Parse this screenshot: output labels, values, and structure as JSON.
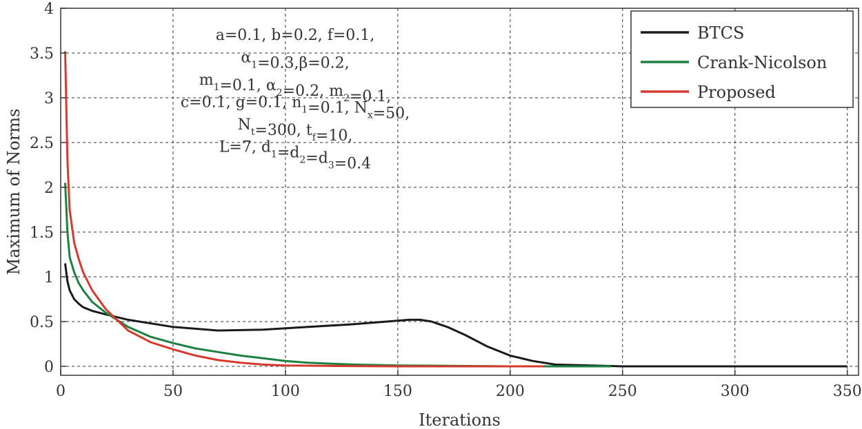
{
  "chart_data": {
    "type": "line",
    "xlabel": "Iterations",
    "ylabel": "Maximum of Norms",
    "xlim": [
      0,
      355
    ],
    "ylim": [
      -0.1,
      4
    ],
    "x_ticks": [
      0,
      50,
      100,
      150,
      200,
      250,
      300,
      350
    ],
    "y_ticks": [
      0,
      0.5,
      1,
      1.5,
      2,
      2.5,
      3,
      3.5,
      4
    ],
    "grid": true,
    "legend_position": "top-right",
    "series": [
      {
        "name": "BTCS",
        "color": "#1a1a1a",
        "x": [
          2,
          3,
          4,
          6,
          8,
          10,
          14,
          20,
          30,
          50,
          70,
          90,
          110,
          130,
          145,
          155,
          160,
          165,
          172,
          180,
          190,
          200,
          210,
          220,
          250,
          300,
          350
        ],
        "y": [
          1.15,
          0.95,
          0.85,
          0.75,
          0.7,
          0.66,
          0.62,
          0.58,
          0.52,
          0.44,
          0.4,
          0.41,
          0.44,
          0.47,
          0.5,
          0.52,
          0.52,
          0.5,
          0.44,
          0.35,
          0.22,
          0.12,
          0.06,
          0.02,
          0,
          0,
          0
        ]
      },
      {
        "name": "Crank-Nicolson",
        "color": "#1e8040",
        "x": [
          2,
          3,
          4,
          6,
          8,
          10,
          14,
          20,
          30,
          40,
          50,
          60,
          70,
          80,
          90,
          100,
          110,
          120,
          130,
          150,
          200,
          245
        ],
        "y": [
          2.05,
          1.5,
          1.22,
          1.05,
          0.93,
          0.85,
          0.72,
          0.6,
          0.44,
          0.33,
          0.26,
          0.2,
          0.16,
          0.12,
          0.09,
          0.06,
          0.04,
          0.03,
          0.02,
          0.01,
          0.0,
          0.0
        ]
      },
      {
        "name": "Proposed",
        "color": "#d63a2e",
        "x": [
          2,
          3,
          4,
          6,
          8,
          10,
          14,
          20,
          30,
          40,
          50,
          60,
          70,
          80,
          90,
          100,
          120,
          150,
          215
        ],
        "y": [
          3.52,
          2.3,
          1.75,
          1.38,
          1.2,
          1.05,
          0.85,
          0.64,
          0.4,
          0.27,
          0.19,
          0.12,
          0.07,
          0.04,
          0.02,
          0.01,
          0.005,
          0.0,
          0.0
        ]
      }
    ],
    "annotation_lines": [
      [
        {
          "t": "a=0.1, b=0.2, f=0.1,"
        }
      ],
      [
        {
          "t": "α"
        },
        {
          "t": "1",
          "sub": true
        },
        {
          "t": "=0.3,β=0.2,"
        }
      ],
      [
        {
          "t": "m"
        },
        {
          "t": "1",
          "sub": true
        },
        {
          "t": "=0.1, α"
        },
        {
          "t": "2",
          "sub": true
        },
        {
          "t": "=0.2, m"
        },
        {
          "t": "2",
          "sub": true
        },
        {
          "t": "=0.1,"
        }
      ],
      [
        {
          "t": "c=0.1, g=0.1, n"
        },
        {
          "t": "1",
          "sub": true
        },
        {
          "t": "=0.1, N"
        },
        {
          "t": "x",
          "sub": true
        },
        {
          "t": "=50,"
        }
      ],
      [
        {
          "t": "N"
        },
        {
          "t": "t",
          "sub": true
        },
        {
          "t": "=300, t"
        },
        {
          "t": "f",
          "sub": true
        },
        {
          "t": "=10,"
        }
      ],
      [
        {
          "t": "L=7, d"
        },
        {
          "t": "1",
          "sub": true
        },
        {
          "t": "=d"
        },
        {
          "t": "2",
          "sub": true
        },
        {
          "t": "=d"
        },
        {
          "t": "3",
          "sub": true
        },
        {
          "t": "=0.4"
        }
      ]
    ]
  }
}
